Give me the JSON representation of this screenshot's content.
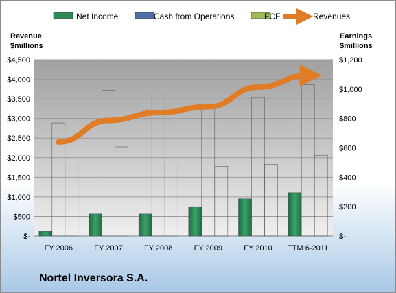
{
  "company": "Nortel Inversora S.A.",
  "chart_data": {
    "type": "bar",
    "categories": [
      "FY 2006",
      "FY 2007",
      "FY 2008",
      "FY 2009",
      "FY 2010",
      "TTM 6-2011"
    ],
    "series": [
      {
        "name": "Net Income",
        "axis": "right",
        "color": "#2e8b57",
        "values": [
          32,
          150,
          150,
          200,
          253,
          295
        ]
      },
      {
        "name": "Cash from Operations",
        "axis": "right",
        "color": "#4f6ea8",
        "values": [
          770,
          993,
          960,
          873,
          943,
          1030
        ]
      },
      {
        "name": "FCF",
        "axis": "right",
        "color": "#9bbb59",
        "values": [
          497,
          607,
          512,
          475,
          487,
          550
        ]
      },
      {
        "name": "Revenues",
        "axis": "left",
        "type": "line",
        "color": "#e07b26",
        "values": [
          2400,
          2950,
          3150,
          3300,
          3800,
          4100
        ]
      }
    ],
    "left_axis": {
      "label_lines": [
        "Revenue",
        "$millions"
      ],
      "ylim": [
        0,
        4500
      ],
      "ticks": [
        0,
        500,
        1000,
        1500,
        2000,
        2500,
        3000,
        3500,
        4000,
        4500
      ],
      "tick_labels": [
        "$-",
        "$500",
        "$1,000",
        "$1,500",
        "$2,000",
        "$2,500",
        "$3,000",
        "$3,500",
        "$4,000",
        "$4,500"
      ]
    },
    "right_axis": {
      "label_lines": [
        "Earnings",
        "$millions"
      ],
      "ylim": [
        0,
        1200
      ],
      "ticks": [
        0,
        200,
        400,
        600,
        800,
        1000,
        1200
      ],
      "tick_labels": [
        "$-",
        "$200",
        "$400",
        "$600",
        "$800",
        "$1,000",
        "$1,200"
      ]
    },
    "grid": true,
    "legend": "top"
  }
}
